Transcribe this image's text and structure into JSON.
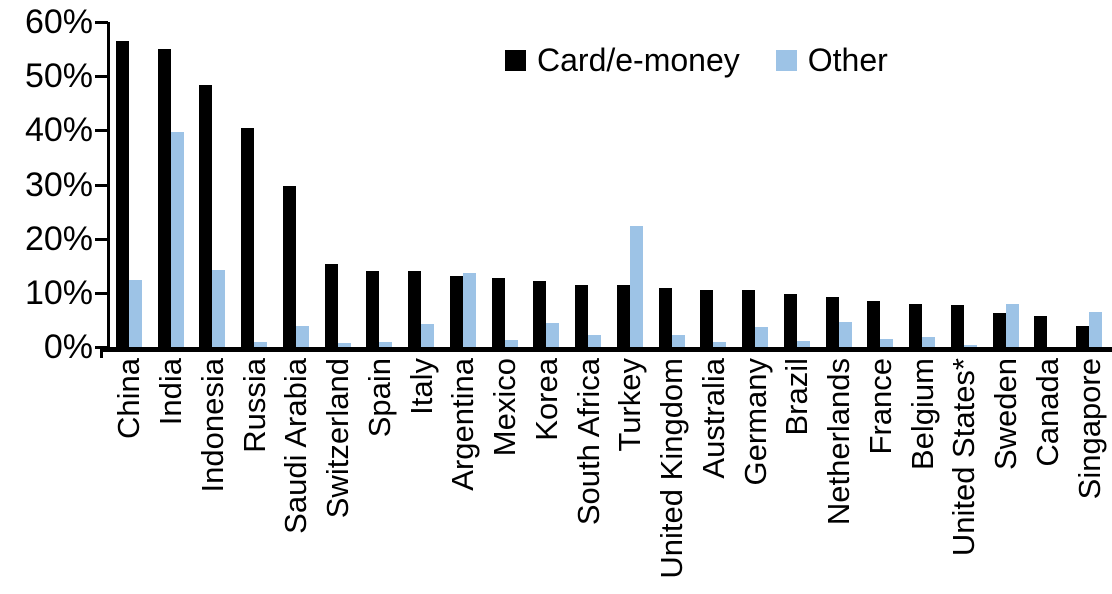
{
  "chart_data": {
    "type": "bar",
    "title": "",
    "legend_position": "top-center",
    "grid": false,
    "ylim": [
      0,
      60
    ],
    "x_label_rotation": -90,
    "categories": [
      "China",
      "India",
      "Indonesia",
      "Russia",
      "Saudi Arabia",
      "Switzerland",
      "Spain",
      "Italy",
      "Argentina",
      "Mexico",
      "Korea",
      "South Africa",
      "Turkey",
      "United Kingdom",
      "Australia",
      "Germany",
      "Brazil",
      "Netherlands",
      "France",
      "Belgium",
      "United States*",
      "Sweden",
      "Canada",
      "Singapore"
    ],
    "series": [
      {
        "name": "Card/e-money",
        "color": "#000000",
        "values": [
          56.4,
          55.1,
          48.4,
          40.5,
          29.8,
          15.4,
          14.1,
          14.0,
          13.1,
          12.7,
          12.1,
          11.5,
          11.4,
          10.9,
          10.6,
          10.5,
          9.8,
          9.2,
          8.5,
          7.9,
          7.7,
          6.3,
          5.7,
          3.8
        ]
      },
      {
        "name": "Other",
        "color": "#9DC3E6",
        "values": [
          12.3,
          39.7,
          14.3,
          1.0,
          3.8,
          0.8,
          1.0,
          4.3,
          13.7,
          1.2,
          4.4,
          2.2,
          22.3,
          2.3,
          0.9,
          3.6,
          1.1,
          4.7,
          1.4,
          1.9,
          0.3,
          7.9,
          0,
          6.5
        ]
      }
    ],
    "y_axis": {
      "ticks": [
        {
          "value": 60,
          "label": "60%"
        },
        {
          "value": 50,
          "label": "50%"
        },
        {
          "value": 40,
          "label": "40%"
        },
        {
          "value": 30,
          "label": "30%"
        },
        {
          "value": 20,
          "label": "20%"
        },
        {
          "value": 10,
          "label": "10%"
        },
        {
          "value": 0,
          "label": "0%"
        }
      ]
    }
  }
}
